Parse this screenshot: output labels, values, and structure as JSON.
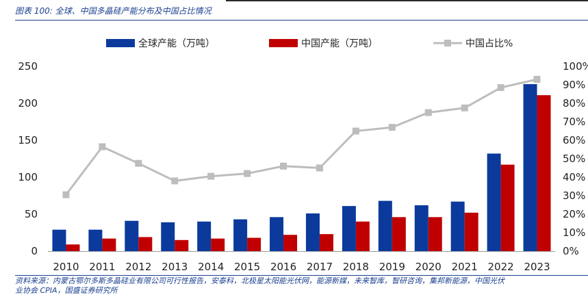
{
  "figure_title": "图表 100: 全球、中国多晶硅产能分布及中国占比情况",
  "source_note": [
    "资料来源：内蒙古鄂尔多斯多晶硅业有限公司可行性报告，安泰科，北极星太阳能光伏网，能源新媒，未来智库，智研咨询，集邦新能源，中国光伏",
    "业协会 CPIA，国盛证券研究所"
  ],
  "chart_data": {
    "type": "bar",
    "categories": [
      "2010",
      "2011",
      "2012",
      "2013",
      "2014",
      "2015",
      "2016",
      "2017",
      "2018",
      "2019",
      "2020",
      "2021",
      "2022",
      "2023"
    ],
    "series": [
      {
        "name": "全球产能（万吨）",
        "kind": "bar",
        "axis": "left",
        "color": "#0b3a9c",
        "values": [
          29,
          29,
          41,
          39,
          40,
          43,
          46,
          51,
          61,
          68,
          62,
          67,
          132,
          226
        ]
      },
      {
        "name": "中国产能（万吨）",
        "kind": "bar",
        "axis": "left",
        "color": "#c00000",
        "values": [
          9,
          17,
          19,
          15,
          17,
          18,
          22,
          23,
          40,
          46,
          46,
          52,
          117,
          211
        ]
      },
      {
        "name": "中国占比%",
        "kind": "line",
        "axis": "right",
        "color": "#bdbdbd",
        "values": [
          30.5,
          56.5,
          47.5,
          38,
          40.5,
          42,
          46,
          45,
          65,
          67,
          75,
          77.5,
          88.5,
          93
        ]
      }
    ],
    "y_left": {
      "ylim": [
        0,
        250
      ],
      "ticks": [
        "0",
        "50",
        "100",
        "150",
        "200",
        "250"
      ]
    },
    "y_right": {
      "ylim": [
        0,
        100
      ],
      "ticks": [
        "0%",
        "10%",
        "20%",
        "30%",
        "40%",
        "50%",
        "60%",
        "70%",
        "80%",
        "90%",
        "100%"
      ]
    },
    "legend_position": "top-center",
    "grid": false
  }
}
